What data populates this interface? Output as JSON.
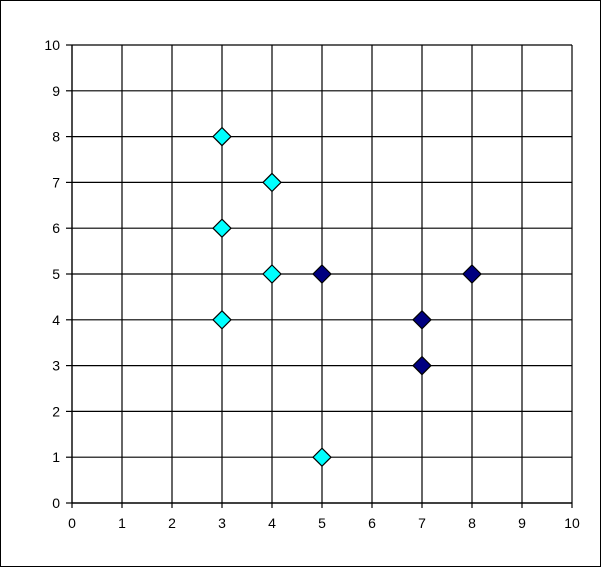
{
  "chart_data": {
    "type": "scatter",
    "title": "",
    "xlabel": "",
    "ylabel": "",
    "xlim": [
      0,
      10
    ],
    "ylim": [
      0,
      10
    ],
    "x_ticks": [
      "0",
      "1",
      "2",
      "3",
      "4",
      "5",
      "6",
      "7",
      "8",
      "9",
      "10"
    ],
    "y_ticks": [
      "0",
      "1",
      "2",
      "3",
      "4",
      "5",
      "6",
      "7",
      "8",
      "9",
      "10"
    ],
    "grid": true,
    "legend": "none",
    "marker": "diamond",
    "series": [
      {
        "color": "#00FFFF",
        "points": [
          {
            "x": 3,
            "y": 8
          },
          {
            "x": 4,
            "y": 7
          },
          {
            "x": 3,
            "y": 6
          },
          {
            "x": 4,
            "y": 5
          },
          {
            "x": 3,
            "y": 4
          },
          {
            "x": 5,
            "y": 1
          }
        ]
      },
      {
        "color": "#000080",
        "points": [
          {
            "x": 5,
            "y": 5
          },
          {
            "x": 8,
            "y": 5
          },
          {
            "x": 7,
            "y": 4
          },
          {
            "x": 7,
            "y": 3
          }
        ]
      }
    ]
  }
}
